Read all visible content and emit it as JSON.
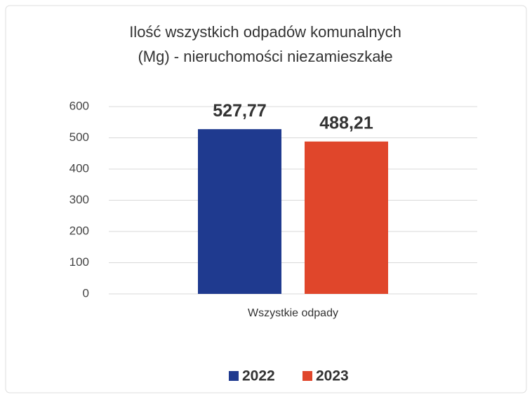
{
  "chart_data": {
    "type": "bar",
    "title": [
      "Ilość wszystkich odpadów komunalnych",
      "(Mg) - nieruchomości niezamieszkałe"
    ],
    "categories": [
      "Wszystkie odpady"
    ],
    "series": [
      {
        "name": "2022",
        "color": "#1f3a8f",
        "values": [
          527.77
        ],
        "value_labels": [
          "527,77"
        ]
      },
      {
        "name": "2023",
        "color": "#e0462b",
        "values": [
          488.21
        ],
        "value_labels": [
          "488,21"
        ]
      }
    ],
    "ylim": [
      0,
      600
    ],
    "yticks": [
      0,
      100,
      200,
      300,
      400,
      500,
      600
    ],
    "grid": true,
    "legend": "bottom"
  }
}
